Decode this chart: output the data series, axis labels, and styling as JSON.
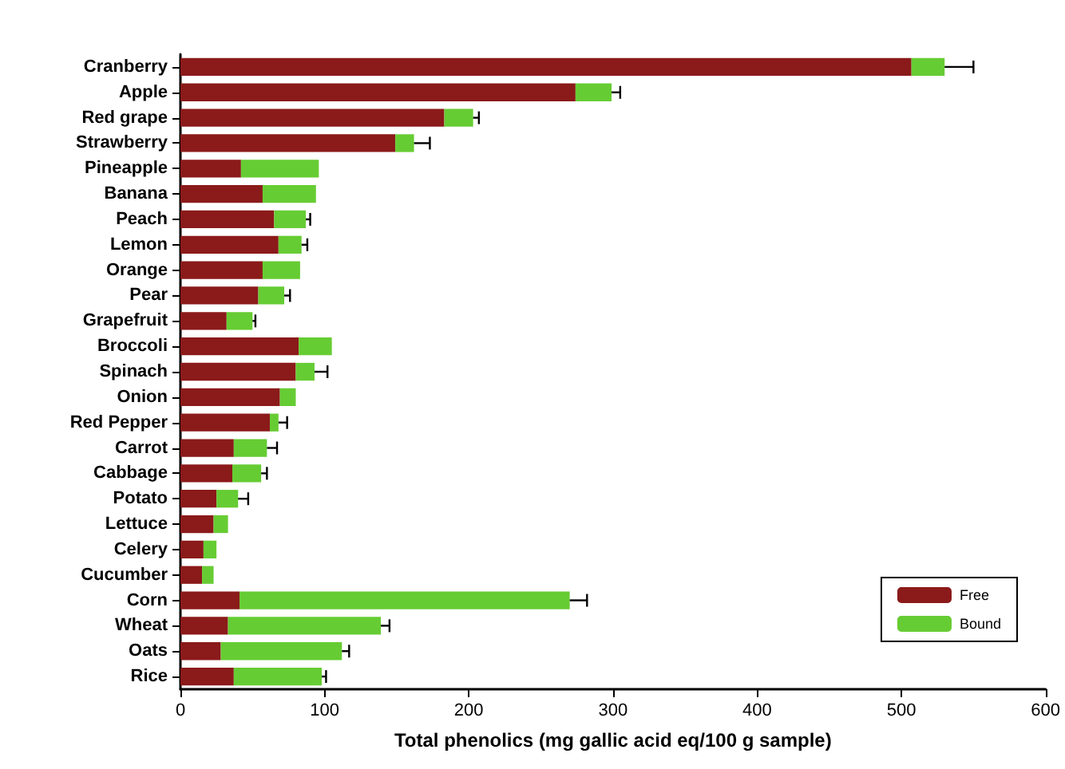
{
  "chart_data": {
    "type": "bar",
    "orientation": "horizontal",
    "stacked": true,
    "xlabel": "Total phenolics (mg gallic acid eq/100 g sample)",
    "categories": [
      "Cranberry",
      "Apple",
      "Red grape",
      "Strawberry",
      "Pineapple",
      "Banana",
      "Peach",
      "Lemon",
      "Orange",
      "Pear",
      "Grapefruit",
      "Broccoli",
      "Spinach",
      "Onion",
      "Red Pepper",
      "Carrot",
      "Cabbage",
      "Potato",
      "Lettuce",
      "Celery",
      "Cucumber",
      "Corn",
      "Wheat",
      "Oats",
      "Rice"
    ],
    "series": [
      {
        "name": "Free",
        "color": "#8b1a1a",
        "values": [
          507,
          274,
          183,
          149,
          42,
          57,
          65,
          68,
          57,
          54,
          32,
          82,
          80,
          69,
          62,
          37,
          36,
          25,
          23,
          16,
          15,
          41,
          33,
          28,
          37
        ]
      },
      {
        "name": "Bound",
        "color": "#66cc33",
        "values": [
          23,
          25,
          20,
          13,
          54,
          37,
          22,
          16,
          26,
          18,
          18,
          23,
          13,
          11,
          6,
          23,
          20,
          15,
          10,
          9,
          8,
          229,
          106,
          84,
          61
        ],
        "errors": [
          [
            530,
            550
          ],
          [
            299,
            305
          ],
          [
            203,
            207
          ],
          [
            162,
            173
          ],
          null,
          null,
          [
            87,
            90
          ],
          [
            84,
            88
          ],
          null,
          [
            72,
            76
          ],
          [
            50,
            52
          ],
          null,
          [
            93,
            102
          ],
          null,
          [
            68,
            74
          ],
          [
            60,
            67
          ],
          [
            56,
            60
          ],
          [
            40,
            47
          ],
          null,
          null,
          null,
          [
            270,
            282
          ],
          [
            139,
            145
          ],
          [
            112,
            117
          ],
          [
            98,
            101
          ]
        ]
      }
    ],
    "xlim": [
      0,
      600
    ],
    "xticks": [
      0,
      100,
      200,
      300,
      400,
      500,
      600
    ],
    "grid": false,
    "legend": "bottom right"
  }
}
